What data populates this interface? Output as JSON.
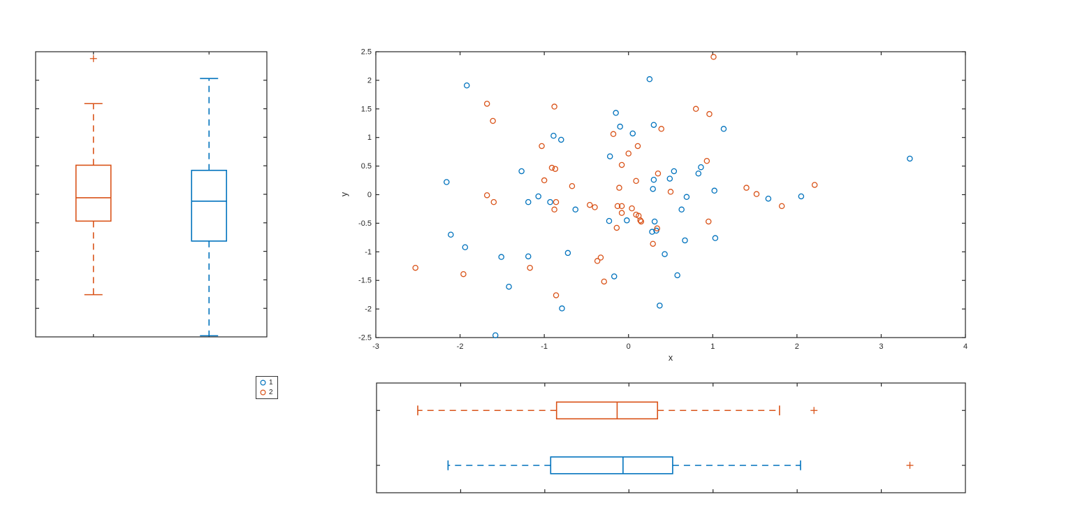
{
  "figure": {
    "type": "scatterhist",
    "background": "#ffffff"
  },
  "colors": {
    "group1": "#0072BD",
    "group2": "#D95319",
    "outlier_marker": "#D95319",
    "axis": "#262626"
  },
  "legend": {
    "position": "below-left-panel",
    "items": [
      {
        "label": "1",
        "color_key": "group1"
      },
      {
        "label": "2",
        "color_key": "group2"
      }
    ]
  },
  "chart_data": [
    {
      "id": "scatter",
      "type": "scatter",
      "title": "",
      "xlabel": "x",
      "ylabel": "y",
      "xlim": [
        -3,
        4
      ],
      "ylim": [
        -2.5,
        2.5
      ],
      "xticks": [
        -3,
        -2,
        -1,
        0,
        1,
        2,
        3,
        4
      ],
      "xticklabels": [
        "-3",
        "-2",
        "-1",
        "0",
        "1",
        "2",
        "3",
        "4"
      ],
      "yticks": [
        -2.5,
        -2,
        -1.5,
        -1,
        -0.5,
        0,
        0.5,
        1,
        1.5,
        2,
        2.5
      ],
      "yticklabels": [
        "-2.5",
        "-2",
        "-1.5",
        "-1",
        "-0.5",
        "0",
        "0.5",
        "1",
        "1.5",
        "2",
        "2.5"
      ],
      "grid": false,
      "marker": "circle",
      "series": [
        {
          "name": "1",
          "color_key": "group1",
          "points": [
            [
              -1.92,
              1.91
            ],
            [
              0.25,
              2.02
            ],
            [
              -2.16,
              0.22
            ],
            [
              -1.27,
              0.41
            ],
            [
              -0.89,
              1.03
            ],
            [
              -0.8,
              0.96
            ],
            [
              -0.15,
              1.43
            ],
            [
              -0.1,
              1.19
            ],
            [
              0.05,
              1.07
            ],
            [
              0.3,
              1.22
            ],
            [
              -0.22,
              0.67
            ],
            [
              1.13,
              1.15
            ],
            [
              3.34,
              0.63
            ],
            [
              0.86,
              0.48
            ],
            [
              0.83,
              0.37
            ],
            [
              0.54,
              0.41
            ],
            [
              0.49,
              0.28
            ],
            [
              0.3,
              0.26
            ],
            [
              0.29,
              0.1
            ],
            [
              1.02,
              0.07
            ],
            [
              0.69,
              -0.04
            ],
            [
              0.63,
              -0.26
            ],
            [
              2.05,
              -0.03
            ],
            [
              1.66,
              -0.07
            ],
            [
              -1.19,
              -0.13
            ],
            [
              -1.07,
              -0.03
            ],
            [
              -0.93,
              -0.13
            ],
            [
              -0.63,
              -0.26
            ],
            [
              -0.23,
              -0.46
            ],
            [
              -0.02,
              -0.45
            ],
            [
              0.31,
              -0.47
            ],
            [
              0.28,
              -0.65
            ],
            [
              0.33,
              -0.63
            ],
            [
              0.67,
              -0.8
            ],
            [
              1.03,
              -0.76
            ],
            [
              0.43,
              -1.04
            ],
            [
              0.58,
              -1.41
            ],
            [
              -2.11,
              -0.7
            ],
            [
              -1.94,
              -0.92
            ],
            [
              -1.51,
              -1.09
            ],
            [
              -1.19,
              -1.08
            ],
            [
              -1.42,
              -1.61
            ],
            [
              -0.72,
              -1.02
            ],
            [
              -0.17,
              -1.43
            ],
            [
              -0.79,
              -1.99
            ],
            [
              0.37,
              -1.94
            ],
            [
              -1.58,
              -2.46
            ]
          ]
        },
        {
          "name": "2",
          "color_key": "group2",
          "points": [
            [
              -1.68,
              1.59
            ],
            [
              -1.61,
              1.29
            ],
            [
              -0.88,
              1.54
            ],
            [
              -1.03,
              0.85
            ],
            [
              1.01,
              2.41
            ],
            [
              0.8,
              1.5
            ],
            [
              0.96,
              1.41
            ],
            [
              -0.18,
              1.06
            ],
            [
              0.11,
              0.85
            ],
            [
              0.0,
              0.72
            ],
            [
              -0.08,
              0.52
            ],
            [
              0.39,
              1.15
            ],
            [
              0.93,
              0.59
            ],
            [
              0.35,
              0.37
            ],
            [
              0.09,
              0.24
            ],
            [
              -0.11,
              0.12
            ],
            [
              0.5,
              0.05
            ],
            [
              1.4,
              0.12
            ],
            [
              1.52,
              0.01
            ],
            [
              2.21,
              0.17
            ],
            [
              1.82,
              -0.2
            ],
            [
              -1.0,
              0.25
            ],
            [
              -0.91,
              0.47
            ],
            [
              -0.87,
              0.45
            ],
            [
              -0.67,
              0.15
            ],
            [
              -1.68,
              -0.01
            ],
            [
              -1.6,
              -0.13
            ],
            [
              -0.86,
              -0.13
            ],
            [
              -0.88,
              -0.26
            ],
            [
              -0.46,
              -0.18
            ],
            [
              -0.4,
              -0.22
            ],
            [
              -0.13,
              -0.2
            ],
            [
              -0.08,
              -0.2
            ],
            [
              -0.08,
              -0.32
            ],
            [
              0.04,
              -0.24
            ],
            [
              0.09,
              -0.35
            ],
            [
              0.12,
              -0.37
            ],
            [
              0.14,
              -0.45
            ],
            [
              0.15,
              -0.47
            ],
            [
              -0.14,
              -0.58
            ],
            [
              0.34,
              -0.59
            ],
            [
              0.29,
              -0.86
            ],
            [
              0.95,
              -0.47
            ],
            [
              -2.53,
              -1.28
            ],
            [
              -1.96,
              -1.39
            ],
            [
              -1.17,
              -1.28
            ],
            [
              -0.37,
              -1.16
            ],
            [
              -0.33,
              -1.1
            ],
            [
              -0.29,
              -1.52
            ],
            [
              -0.86,
              -1.76
            ]
          ]
        }
      ]
    },
    {
      "id": "y-marginal-boxplot",
      "type": "boxplot",
      "orientation": "vertical",
      "value_lim": [
        -2.5,
        2.5
      ],
      "tick_values": [
        -2,
        -1.5,
        -1,
        -0.5,
        0,
        0.5,
        1,
        1.5,
        2
      ],
      "groups": [
        {
          "name": "2",
          "color_key": "group2",
          "q1": -0.47,
          "median": -0.06,
          "q3": 0.51,
          "whisker_low": -1.76,
          "whisker_high": 1.59,
          "outliers": [
            2.38
          ]
        },
        {
          "name": "1",
          "color_key": "group1",
          "q1": -0.82,
          "median": -0.12,
          "q3": 0.42,
          "whisker_low": -2.48,
          "whisker_high": 2.03,
          "outliers": []
        }
      ]
    },
    {
      "id": "x-marginal-boxplot",
      "type": "boxplot",
      "orientation": "horizontal",
      "value_lim": [
        -3,
        4
      ],
      "tick_values": [
        -2,
        -1,
        0,
        1,
        2,
        3
      ],
      "groups": [
        {
          "name": "2",
          "color_key": "group2",
          "q1": -0.86,
          "median": -0.14,
          "q3": 0.34,
          "whisker_low": -2.51,
          "whisker_high": 1.79,
          "outliers": [
            2.2
          ]
        },
        {
          "name": "1",
          "color_key": "group1",
          "q1": -0.93,
          "median": -0.07,
          "q3": 0.52,
          "whisker_low": -2.15,
          "whisker_high": 2.04,
          "outliers": [
            3.34
          ]
        }
      ]
    }
  ]
}
